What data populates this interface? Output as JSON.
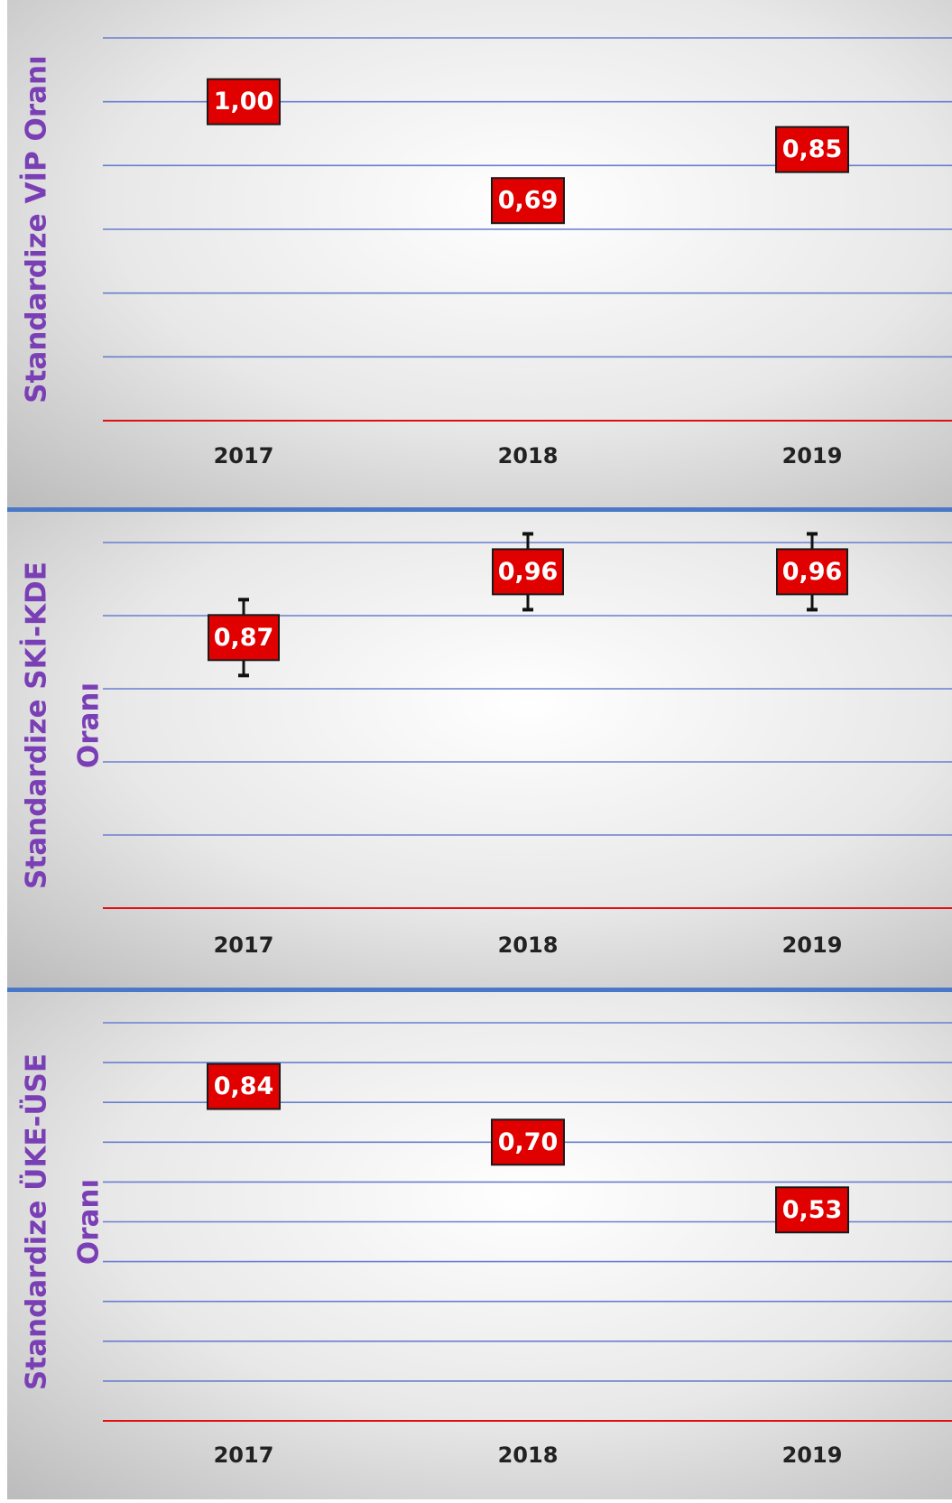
{
  "colors": {
    "label_box": "#e00000",
    "label_border": "#1a1a1a",
    "label_text": "#ffffff",
    "axis_title": "#7a3fb5",
    "grid": "#6a7ed0",
    "baseline": "#e01010",
    "separator": "#4a78c8",
    "error_bar": "#111111",
    "tick_label": "#222222"
  },
  "chart_data": [
    {
      "type": "scatter",
      "ylabel": "Standardize VİP Oranı",
      "x": [
        "2017",
        "2018",
        "2019"
      ],
      "values": [
        1.0,
        0.69,
        0.85
      ],
      "labels": [
        "1,00",
        "0,69",
        "0,85"
      ],
      "error_bars": false,
      "ylim": [
        0,
        1.2
      ],
      "grid": true
    },
    {
      "type": "scatter",
      "ylabel": "Standardize SKİ-KDE Oranı",
      "x": [
        "2017",
        "2018",
        "2019"
      ],
      "values": [
        0.87,
        0.96,
        0.96
      ],
      "labels": [
        "0,87",
        "0,96",
        "0,96"
      ],
      "error_bars": true,
      "ylim": [
        0.5,
        1.0
      ],
      "grid": true
    },
    {
      "type": "scatter",
      "ylabel": "Standardize ÜKE-ÜSE Oranı",
      "x": [
        "2017",
        "2018",
        "2019"
      ],
      "values": [
        0.84,
        0.7,
        0.53
      ],
      "labels": [
        "0,84",
        "0,70",
        "0,53"
      ],
      "error_bars": false,
      "ylim": [
        0,
        1.0
      ],
      "grid": true
    }
  ]
}
